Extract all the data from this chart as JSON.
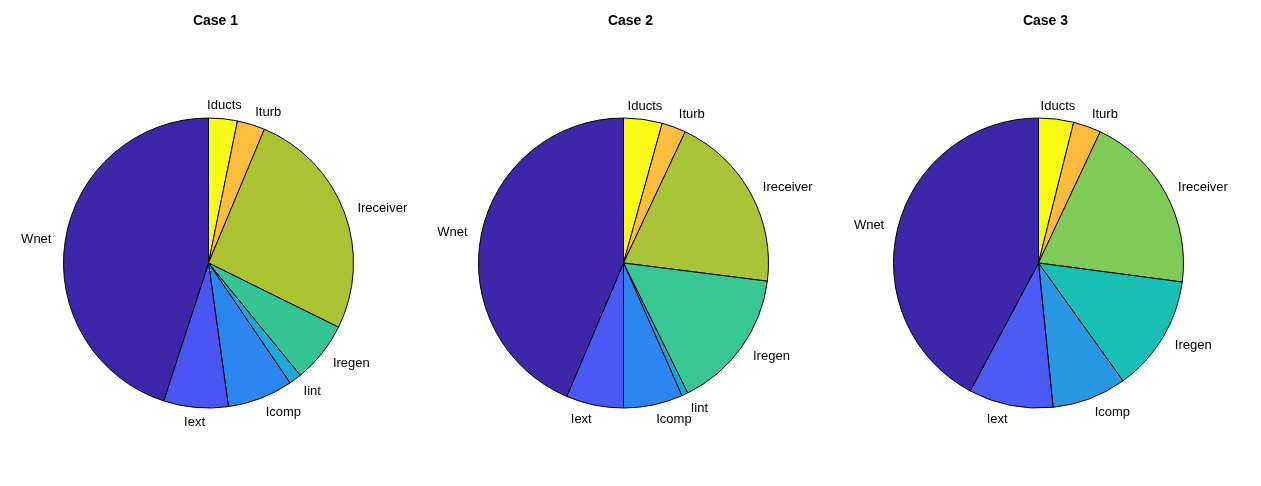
{
  "chart_data": [
    {
      "type": "pie",
      "title": "Case 1",
      "categories": [
        "Iducts",
        "Iturb",
        "Ireceiver",
        "Iregen",
        "Iint",
        "Icomp",
        "Iext",
        "Wnet"
      ],
      "values": [
        3.2,
        3.1,
        26,
        6.8,
        1.4,
        7.3,
        7.2,
        45
      ],
      "colors": [
        "#f9fb15",
        "#fdbd3d",
        "#abc332",
        "#35c595",
        "#1ea9d8",
        "#2c86f0",
        "#4a55f5",
        "#3e26a8"
      ]
    },
    {
      "type": "pie",
      "title": "Case 2",
      "categories": [
        "Iducts",
        "Iturb",
        "Ireceiver",
        "Iregen",
        "Iint",
        "Icomp",
        "Iext",
        "Wnet"
      ],
      "values": [
        4.3,
        2.7,
        20,
        15.7,
        0.7,
        6.6,
        6.4,
        43.6
      ],
      "colors": [
        "#f9fb15",
        "#fdbd3d",
        "#abc338",
        "#38c694",
        "#10aad8",
        "#2b87ef",
        "#4a58f5",
        "#3e26a8"
      ]
    },
    {
      "type": "pie",
      "title": "Case 3",
      "categories": [
        "Iducts",
        "Iturb",
        "Ireceiver",
        "Iregen",
        "Icomp",
        "Iext",
        "Wnet"
      ],
      "values": [
        3.9,
        3.1,
        20.1,
        13,
        8.3,
        9.4,
        42.2
      ],
      "colors": [
        "#f9fb0e",
        "#fdba3d",
        "#80cb58",
        "#18bfb4",
        "#2898e5",
        "#4a5bf6",
        "#3e26a8"
      ]
    }
  ]
}
